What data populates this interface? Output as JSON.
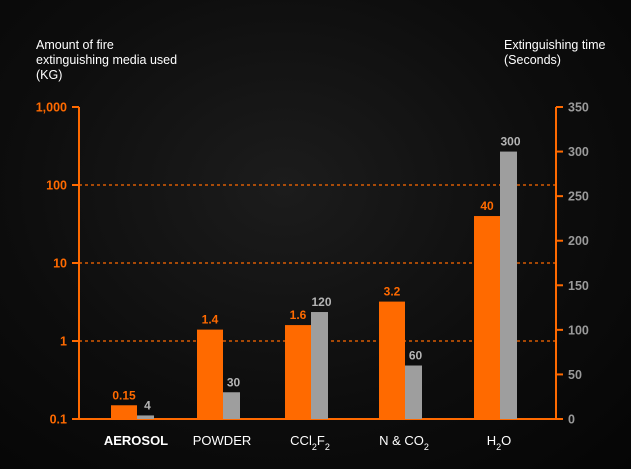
{
  "chart_data": {
    "type": "bar",
    "categories": [
      "AEROSOL",
      "POWDER",
      "CCl2F2",
      "N & CO2",
      "H2O"
    ],
    "category_labels": [
      {
        "parts": [
          {
            "t": "AEROSOL"
          }
        ],
        "bold": true
      },
      {
        "parts": [
          {
            "t": "POWDER"
          }
        ]
      },
      {
        "parts": [
          {
            "t": "CCl"
          },
          {
            "t": "2",
            "sub": true
          },
          {
            "t": "F"
          },
          {
            "t": "2",
            "sub": true
          }
        ]
      },
      {
        "parts": [
          {
            "t": "N & CO"
          },
          {
            "t": "2",
            "sub": true
          }
        ]
      },
      {
        "parts": [
          {
            "t": "H"
          },
          {
            "t": "2",
            "sub": true
          },
          {
            "t": "O"
          }
        ]
      }
    ],
    "series": [
      {
        "axis": "left",
        "color": "#ff6a00",
        "values": [
          0.15,
          1.4,
          1.6,
          3.2,
          40
        ],
        "labels": [
          "0.15",
          "1.4",
          "1.6",
          "3.2",
          "40"
        ]
      },
      {
        "axis": "right",
        "color": "#9e9e9e",
        "values": [
          4,
          30,
          120,
          60,
          300
        ],
        "labels": [
          "4",
          "30",
          "120",
          "60",
          "300"
        ]
      }
    ],
    "ylabel": "Amount of fire extinguishing media used (KG)",
    "y2label": "Extinguishing time (Seconds)",
    "yscale": "log",
    "ylim": [
      0.1,
      1000
    ],
    "yticks": [
      0.1,
      1,
      10,
      100,
      1000
    ],
    "ytick_labels": [
      "0.1",
      "1",
      "10",
      "100",
      "1,000"
    ],
    "y2lim": [
      0,
      350
    ],
    "y2ticks": [
      0,
      50,
      100,
      150,
      200,
      250,
      300,
      350
    ],
    "y2tick_labels": [
      "0",
      "50",
      "100",
      "150",
      "200",
      "250",
      "300",
      "350"
    ],
    "grid": "dashed-major-log",
    "axis_color": "#ff6a00",
    "grid_color": "#ff6a00",
    "left_tick_label_color": "#ff6a00",
    "right_tick_label_color": "#9a9a9a",
    "grey_label_color": "#b4b4b4"
  }
}
